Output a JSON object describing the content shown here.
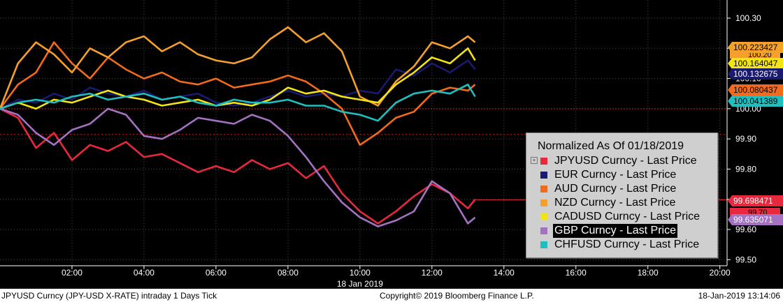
{
  "colors": {
    "background": "#000000",
    "axis": "#ffffff",
    "grid": "#4a4a4a",
    "baseline": "#c0141c",
    "legend_bg": "#cfcfcf"
  },
  "footer": {
    "left": "JPYUSD Curncy (JPY-USD X-RATE) intraday 1 Days  Tick",
    "center": "Copyright© 2019 Bloomberg Finance L.P.",
    "right": "18-Jan-2019 13:14:06"
  },
  "chart_data": {
    "type": "line",
    "title": "Normalized As Of 01/18/2019",
    "date_label": "18 Jan 2019",
    "x_unit": "hours",
    "xlim": [
      0,
      20.2
    ],
    "ylim": [
      99.48,
      100.36
    ],
    "x_ticks": [
      {
        "value": 2,
        "label": "02:00"
      },
      {
        "value": 4,
        "label": "04:00"
      },
      {
        "value": 6,
        "label": "06:00"
      },
      {
        "value": 8,
        "label": "08:00"
      },
      {
        "value": 10,
        "label": "10:00"
      },
      {
        "value": 12,
        "label": "12:00"
      },
      {
        "value": 14,
        "label": "14:00"
      },
      {
        "value": 16,
        "label": "16:00"
      },
      {
        "value": 18,
        "label": "18:00"
      },
      {
        "value": 20,
        "label": "20:00"
      }
    ],
    "y_ticks": [
      {
        "value": 100.3,
        "label": "100.30"
      },
      {
        "value": 100.2,
        "label": "100.20"
      },
      {
        "value": 100.1,
        "label": "100.10"
      },
      {
        "value": 100.0,
        "label": "100.00"
      },
      {
        "value": 99.9,
        "label": "99.90"
      },
      {
        "value": 99.8,
        "label": "99.80"
      },
      {
        "value": 99.7,
        "label": "99.70"
      },
      {
        "value": 99.6,
        "label": "99.60"
      },
      {
        "value": 99.5,
        "label": "99.50"
      }
    ],
    "grid": true,
    "baseline": 100.0,
    "reference_line": 99.915,
    "legend_position": "bottom-right",
    "series": [
      {
        "name": "JPYUSD Curncy - Last Price",
        "color": "#e8283c",
        "last_label": "99.698471",
        "last": 99.698471,
        "x": [
          0,
          0.5,
          1,
          1.5,
          2,
          2.5,
          3,
          3.5,
          4,
          4.5,
          5,
          5.5,
          6,
          6.5,
          7,
          7.5,
          8,
          8.5,
          9,
          9.5,
          10,
          10.5,
          11,
          11.5,
          12,
          12.5,
          13,
          13.2
        ],
        "y": [
          100.0,
          99.97,
          99.87,
          99.92,
          99.83,
          99.88,
          99.86,
          99.89,
          99.84,
          99.85,
          99.82,
          99.79,
          99.81,
          99.79,
          99.83,
          99.8,
          99.82,
          99.77,
          99.81,
          99.72,
          99.66,
          99.62,
          99.66,
          99.71,
          99.75,
          99.72,
          99.67,
          99.7
        ]
      },
      {
        "name": "EUR Curncy - Last Price",
        "color": "#1a1a6e",
        "last_label": "100.132675",
        "last": 100.132675,
        "x": [
          0,
          0.5,
          1,
          1.5,
          2,
          2.5,
          3,
          3.5,
          4,
          4.5,
          5,
          5.5,
          6,
          6.5,
          7,
          7.5,
          8,
          8.5,
          9,
          9.5,
          10,
          10.5,
          11,
          11.5,
          12,
          12.5,
          13,
          13.2
        ],
        "y": [
          100.0,
          100.03,
          100.02,
          100.05,
          100.03,
          100.07,
          100.05,
          100.04,
          100.06,
          100.03,
          100.04,
          100.05,
          100.02,
          100.01,
          100.02,
          100.04,
          100.06,
          100.04,
          100.05,
          100.04,
          100.06,
          100.05,
          100.13,
          100.11,
          100.15,
          100.12,
          100.16,
          100.13
        ]
      },
      {
        "name": "AUD Curncy - Last Price",
        "color": "#f26a1b",
        "last_label": "100.080437",
        "last": 100.080437,
        "x": [
          0,
          0.5,
          1,
          1.5,
          2,
          2.5,
          3,
          3.5,
          4,
          4.5,
          5,
          5.5,
          6,
          6.5,
          7,
          7.5,
          8,
          8.5,
          9,
          9.5,
          10,
          10.5,
          11,
          11.5,
          12,
          12.5,
          13,
          13.2
        ],
        "y": [
          100.0,
          100.08,
          100.12,
          100.22,
          100.15,
          100.1,
          100.17,
          100.13,
          100.1,
          100.12,
          100.09,
          100.08,
          100.1,
          100.07,
          100.08,
          100.09,
          100.11,
          100.09,
          100.05,
          100.0,
          99.88,
          99.92,
          99.97,
          99.99,
          100.05,
          100.07,
          100.06,
          100.08
        ]
      },
      {
        "name": "NZD Curncy - Last Price",
        "color": "#f5a02a",
        "last_label": "100.223427",
        "last": 100.223427,
        "x": [
          0,
          0.5,
          1,
          1.5,
          2,
          2.5,
          3,
          3.5,
          4,
          4.5,
          5,
          5.5,
          6,
          6.5,
          7,
          7.5,
          8,
          8.5,
          9,
          9.5,
          10,
          10.5,
          11,
          11.5,
          12,
          12.5,
          13,
          13.2
        ],
        "y": [
          100.0,
          100.15,
          100.22,
          100.18,
          100.12,
          100.2,
          100.17,
          100.22,
          100.24,
          100.19,
          100.22,
          100.18,
          100.16,
          100.15,
          100.17,
          100.23,
          100.27,
          100.22,
          100.25,
          100.19,
          100.04,
          100.01,
          100.09,
          100.14,
          100.22,
          100.2,
          100.24,
          100.22
        ]
      },
      {
        "name": "CADUSD Curncy - Last Price",
        "color": "#f2e415",
        "last_label": "100.164047",
        "last": 100.164047,
        "x": [
          0,
          0.5,
          1,
          1.5,
          2,
          2.5,
          3,
          3.5,
          4,
          4.5,
          5,
          5.5,
          6,
          6.5,
          7,
          7.5,
          8,
          8.5,
          9,
          9.5,
          10,
          10.5,
          11,
          11.5,
          12,
          12.5,
          13,
          13.2
        ],
        "y": [
          100.0,
          100.02,
          100.0,
          100.03,
          100.02,
          100.04,
          100.06,
          100.04,
          100.03,
          100.01,
          100.02,
          100.03,
          100.01,
          100.02,
          100.01,
          100.03,
          100.07,
          100.05,
          100.06,
          100.04,
          100.03,
          100.02,
          100.08,
          100.12,
          100.17,
          100.15,
          100.2,
          100.16
        ]
      },
      {
        "name": "GBP Curncy - Last Price",
        "color": "#a372c2",
        "last_label": "99.635071",
        "last": 99.635071,
        "x": [
          0,
          0.5,
          1,
          1.5,
          2,
          2.5,
          3,
          3.5,
          4,
          4.5,
          5,
          5.5,
          6,
          6.5,
          7,
          7.5,
          8,
          8.5,
          9,
          9.5,
          10,
          10.5,
          11,
          11.5,
          12,
          12.5,
          13,
          13.2
        ],
        "y": [
          100.0,
          99.98,
          99.92,
          99.88,
          99.93,
          99.95,
          100.0,
          99.98,
          99.91,
          99.9,
          99.93,
          99.97,
          99.96,
          99.95,
          99.98,
          99.96,
          99.91,
          99.84,
          99.76,
          99.69,
          99.64,
          99.61,
          99.63,
          99.66,
          99.76,
          99.72,
          99.62,
          99.64
        ]
      },
      {
        "name": "CHFUSD Curncy - Last Price",
        "color": "#1fbfbf",
        "last_label": "100.041389",
        "last": 100.041389,
        "x": [
          0,
          0.5,
          1,
          1.5,
          2,
          2.5,
          3,
          3.5,
          4,
          4.5,
          5,
          5.5,
          6,
          6.5,
          7,
          7.5,
          8,
          8.5,
          9,
          9.5,
          10,
          10.5,
          11,
          11.5,
          12,
          12.5,
          13,
          13.2
        ],
        "y": [
          100.0,
          100.02,
          100.03,
          100.02,
          100.04,
          100.05,
          100.03,
          100.04,
          100.05,
          100.03,
          100.04,
          100.02,
          100.01,
          100.03,
          100.02,
          100.02,
          100.03,
          100.01,
          100.01,
          99.99,
          99.98,
          99.96,
          100.02,
          100.05,
          100.06,
          100.05,
          100.08,
          100.04
        ]
      }
    ],
    "extra_labels": [
      {
        "label": "100.20",
        "color": "#f5a02a"
      },
      {
        "label": "99.70",
        "color": "#e8283c"
      }
    ],
    "legend_selected": "GBP Curncy - Last Price"
  }
}
